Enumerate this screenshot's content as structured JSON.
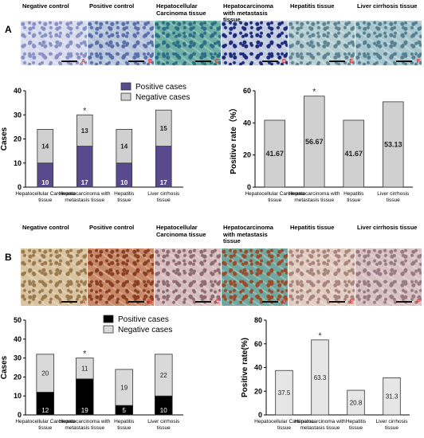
{
  "panels": [
    {
      "letter": "A",
      "images": [
        {
          "label": "Negative control",
          "corner": "A",
          "bg": "#d8dcee",
          "accent": "#8890c4"
        },
        {
          "label": "Positive control",
          "corner": "B",
          "bg": "#b8c6de",
          "accent": "#5a6fa8"
        },
        {
          "label": "Hepatocellular Carcinoma tissue",
          "corner": "C",
          "bg": "#6fb0a6",
          "accent": "#2c6e86"
        },
        {
          "label": "Hepatocarcinoma with metastasis tissue",
          "corner": "D",
          "bg": "#c3cbe0",
          "accent": "#1c2a7a"
        },
        {
          "label": "Hepatitis tissue",
          "corner": "E",
          "bg": "#b6cfd2",
          "accent": "#5f8392"
        },
        {
          "label": "Liver cirrhosis tissue",
          "corner": "F",
          "bg": "#a9c7cf",
          "accent": "#56808f"
        }
      ]
    },
    {
      "letter": "B",
      "images": [
        {
          "label": "Negative control",
          "corner": "A",
          "bg": "#d9c3a0",
          "accent": "#9c7a4e"
        },
        {
          "label": "Positive control",
          "corner": "B",
          "bg": "#c98a6a",
          "accent": "#8a3e22"
        },
        {
          "label": "Hepatocellular Carcinoma tissue",
          "corner": "C",
          "bg": "#d7bfc0",
          "accent": "#8f6a72"
        },
        {
          "label": "Hepatocarcinoma with metastasis tissue",
          "corner": "D",
          "bg": "#6fa8a0",
          "accent": "#9a4c2a"
        },
        {
          "label": "Hepatitis tissue",
          "corner": "E",
          "bg": "#e2cdc4",
          "accent": "#a8847a"
        },
        {
          "label": "Liver cirrhosis tissue",
          "corner": "F",
          "bg": "#d9c2c4",
          "accent": "#9a7a84"
        }
      ]
    }
  ],
  "chart_data": [
    {
      "type": "bar",
      "stacked": true,
      "categories": [
        "Hepatocellular Carcinoma tissue",
        "Hepatocarcinoma with metastasis tissue",
        "Hepatitis tissue",
        "Liver cirrhosis tissue"
      ],
      "series": [
        {
          "name": "Positive cases",
          "values": [
            10,
            17,
            10,
            17
          ],
          "color": "#584a8c"
        },
        {
          "name": "Negative cases",
          "values": [
            14,
            13,
            14,
            15
          ],
          "color": "#d0d0d0"
        }
      ],
      "ylabel": "Cases",
      "ylim": [
        0,
        40
      ],
      "yticks": [
        0,
        10,
        20,
        30,
        40
      ],
      "annotations": [
        {
          "category_index": 1,
          "text": "*"
        }
      ],
      "legend": "top-right"
    },
    {
      "type": "bar",
      "categories": [
        "Hepatocellular Carcinoma tissue",
        "Hepatocarcinoma with metastasis tissue",
        "Hepatitis tissue",
        "Liver cirrhosis tissue"
      ],
      "values": [
        41.67,
        56.67,
        41.67,
        53.13
      ],
      "color": "#d0d0d0",
      "ylabel": "Positive rate（%）",
      "ylim": [
        0,
        60
      ],
      "yticks": [
        0,
        20,
        40,
        60
      ],
      "annotations": [
        {
          "category_index": 1,
          "text": "*"
        }
      ]
    },
    {
      "type": "bar",
      "stacked": true,
      "categories": [
        "Hepatocellular Carcinoma tissue",
        "Hepatocarcinoma with metastasis tissue",
        "Hepatitis tissue",
        "Liver cirrhosis tissue"
      ],
      "series": [
        {
          "name": "Positive cases",
          "values": [
            12,
            19,
            5,
            10
          ],
          "color": "#000000"
        },
        {
          "name": "Negative cases",
          "values": [
            20,
            11,
            19,
            22
          ],
          "color": "#d9d9d9"
        }
      ],
      "ylabel": "Cases",
      "ylim": [
        0,
        50
      ],
      "yticks": [
        0,
        10,
        20,
        30,
        40,
        50
      ],
      "annotations": [
        {
          "category_index": 1,
          "text": "*"
        }
      ],
      "legend": "top-right"
    },
    {
      "type": "bar",
      "categories": [
        "Hepatocellular Carcinoma tissue",
        "Hepatocarcinoma with metastasis tissue",
        "Hepatitis tissue",
        "Liver cirrhosis tissue"
      ],
      "values": [
        37.5,
        63.3,
        20.8,
        31.3
      ],
      "color": "#e6e6e6",
      "ylabel": "Positive rate(%)",
      "ylim": [
        0,
        80
      ],
      "yticks": [
        0,
        20,
        40,
        60,
        80
      ],
      "annotations": [
        {
          "category_index": 1,
          "text": "*"
        }
      ]
    }
  ]
}
